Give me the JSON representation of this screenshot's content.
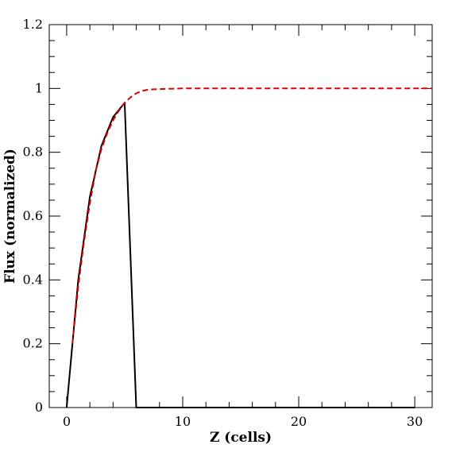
{
  "chart_data": {
    "type": "line",
    "xlabel": "Z (cells)",
    "ylabel": "Flux (normalized)",
    "xlim": [
      -1.5,
      31.5
    ],
    "ylim": [
      0,
      1.2
    ],
    "x_ticks": [
      0,
      10,
      20,
      30
    ],
    "x_tick_labels": [
      "0",
      "10",
      "20",
      "30"
    ],
    "y_ticks": [
      0,
      0.2,
      0.4,
      0.6,
      0.8,
      1,
      1.2
    ],
    "y_tick_labels": [
      "0",
      "0.2",
      "0.4",
      "0.6",
      "0.8",
      "1",
      "1.2"
    ],
    "grid": false,
    "series": [
      {
        "color": "#000000",
        "style": "solid",
        "points": [
          [
            0,
            0
          ],
          [
            1,
            0.4
          ],
          [
            2,
            0.66
          ],
          [
            3,
            0.82
          ],
          [
            4,
            0.91
          ],
          [
            5,
            0.955
          ],
          [
            6,
            0
          ],
          [
            30,
            0
          ]
        ]
      },
      {
        "color": "#dd0000",
        "style": "dashed",
        "points": [
          [
            0.5,
            0.2
          ],
          [
            1,
            0.38
          ],
          [
            1.5,
            0.52
          ],
          [
            2,
            0.64
          ],
          [
            2.5,
            0.74
          ],
          [
            3,
            0.81
          ],
          [
            3.5,
            0.86
          ],
          [
            4,
            0.9
          ],
          [
            4.5,
            0.93
          ],
          [
            5,
            0.955
          ],
          [
            5.5,
            0.972
          ],
          [
            6,
            0.985
          ],
          [
            6.5,
            0.992
          ],
          [
            7,
            0.996
          ],
          [
            8,
            0.998
          ],
          [
            9,
            0.999
          ],
          [
            10,
            1.0
          ],
          [
            15,
            1.0
          ],
          [
            20,
            1.0
          ],
          [
            25,
            1.0
          ],
          [
            30,
            1.0
          ],
          [
            31.5,
            1.0
          ]
        ]
      }
    ]
  }
}
